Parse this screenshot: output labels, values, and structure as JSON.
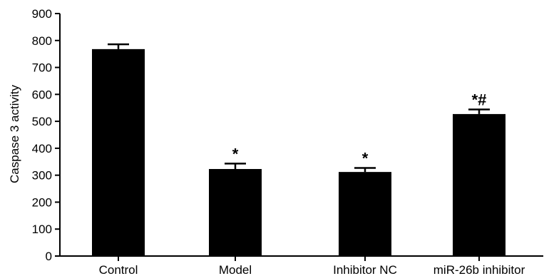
{
  "chart_data": {
    "type": "bar",
    "title": "",
    "xlabel": "",
    "ylabel": "Caspase 3 activity",
    "ylim": [
      0,
      900
    ],
    "yticks": [
      0,
      100,
      200,
      300,
      400,
      500,
      600,
      700,
      800,
      900
    ],
    "categories": [
      "Control",
      "Model",
      "Inhibitor NC",
      "miR-26b inhibitor"
    ],
    "values": [
      768,
      323,
      312,
      527
    ],
    "error_upper": [
      18,
      20,
      15,
      17
    ],
    "annotations": [
      "",
      "*",
      "*",
      "*#"
    ],
    "bar_color": "#000000",
    "grid": false,
    "legend": "none"
  }
}
